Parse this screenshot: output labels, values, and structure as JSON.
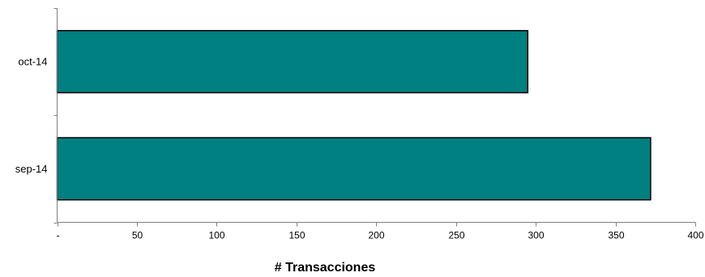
{
  "chart_data": {
    "type": "bar",
    "orientation": "horizontal",
    "categories": [
      "oct-14",
      "sep-14"
    ],
    "values": [
      295,
      372
    ],
    "xlabel": "# Transacciones",
    "ylabel": "",
    "xlim": [
      0,
      400
    ],
    "x_ticks": [
      0,
      50,
      100,
      150,
      200,
      250,
      300,
      350,
      400
    ],
    "x_tick_labels": [
      "-",
      "50",
      "100",
      "150",
      "200",
      "250",
      "300",
      "350",
      "400"
    ],
    "grid": false,
    "legend": "none",
    "colors": {
      "bar_fill": "#008080",
      "bar_stroke": "#000000",
      "axis": "#7f7f7f"
    }
  }
}
